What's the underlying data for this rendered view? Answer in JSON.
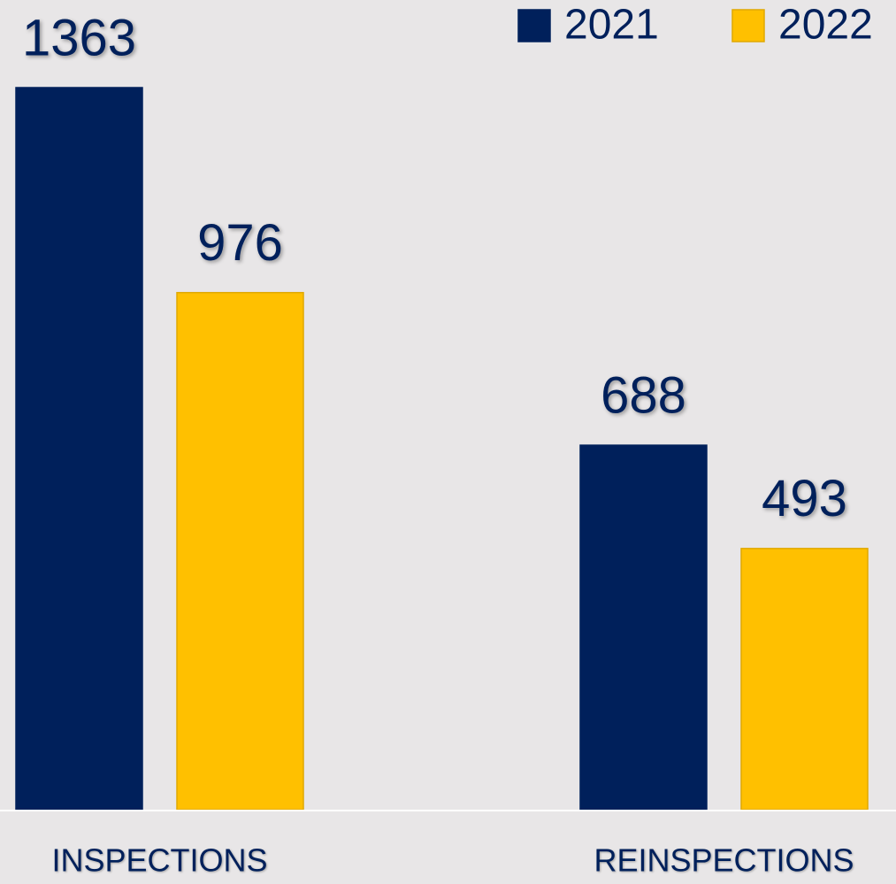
{
  "chart_data": {
    "type": "bar",
    "categories": [
      "INSPECTIONS",
      "REINSPECTIONS"
    ],
    "series": [
      {
        "name": "2021",
        "color": "#00205b",
        "values": [
          1363,
          688
        ]
      },
      {
        "name": "2022",
        "color": "#ffc000",
        "values": [
          976,
          493
        ]
      }
    ]
  }
}
